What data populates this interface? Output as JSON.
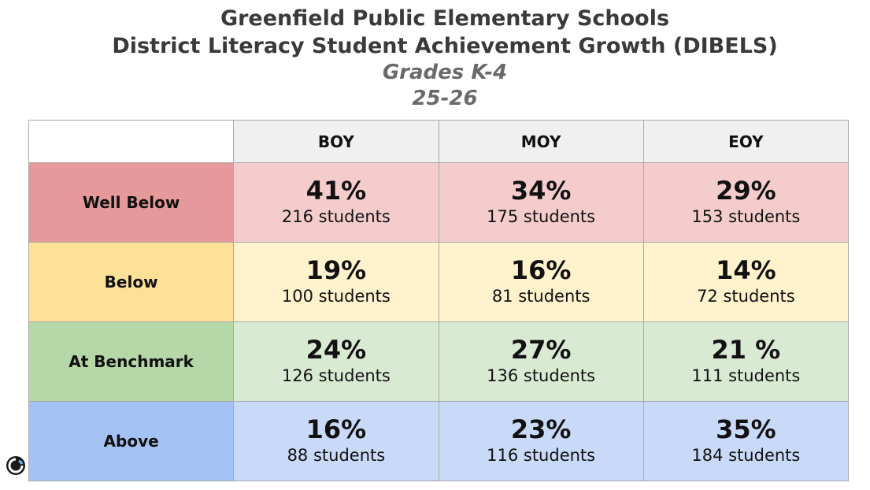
{
  "title": {
    "line1": "Greenfield Public Elementary Schools",
    "line2": "District Literacy Student Achievement Growth  (DIBELS)",
    "line3": "Grades K-4",
    "line4": "25-26"
  },
  "colors": {
    "well_below_label": "#e6999a",
    "well_below_cell": "#f5cccc",
    "below_label": "#fde197",
    "below_cell": "#fff2cc",
    "benchmark_label": "#b6d7a8",
    "benchmark_cell": "#d9ead3",
    "above_label": "#a4c2f4",
    "above_cell": "#c9daf8"
  },
  "chart_data": {
    "type": "table",
    "columns": [
      "BOY",
      "MOY",
      "EOY"
    ],
    "rows": [
      {
        "label": "Well Below",
        "cells": [
          {
            "pct": "41%",
            "count": "216 students"
          },
          {
            "pct": "34%",
            "count": "175 students"
          },
          {
            "pct": "29%",
            "count": "153 students"
          }
        ]
      },
      {
        "label": "Below",
        "cells": [
          {
            "pct": "19%",
            "count": "100 students"
          },
          {
            "pct": "16%",
            "count": "81 students"
          },
          {
            "pct": "14%",
            "count": "72 students"
          }
        ]
      },
      {
        "label": "At Benchmark",
        "cells": [
          {
            "pct": "24%",
            "count": "126 students"
          },
          {
            "pct": "27%",
            "count": "136 students"
          },
          {
            "pct": "21 %",
            "count": "111 students"
          }
        ]
      },
      {
        "label": "Above",
        "cells": [
          {
            "pct": "16%",
            "count": "88 students"
          },
          {
            "pct": "23%",
            "count": "116 students"
          },
          {
            "pct": "35%",
            "count": "184 students"
          }
        ]
      }
    ]
  },
  "logo_icon": "circle-logo-icon"
}
